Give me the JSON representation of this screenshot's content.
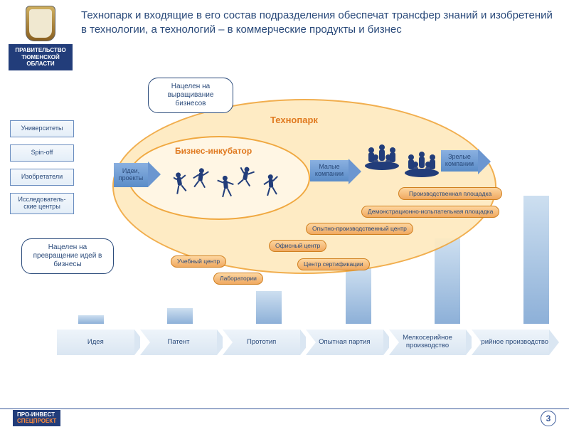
{
  "org_name": "ПРАВИТЕЛЬСТВО ТЮМЕНСКОЙ ОБЛАСТИ",
  "title": "Технопарк и входящие в его состав подразделения обеспечат трансфер знаний и изобретений в технологии, а технологий – в коммерческие продукты и бизнес",
  "sources": [
    "Университеты",
    "Spin-off",
    "Изобретатели",
    "Исследователь-\nские центры"
  ],
  "speech_top": "Нацелен на выращивание бизнесов",
  "speech_left": "Нацелен на превращение идей в бизнесы",
  "technopark_label": "Технопарк",
  "incubator_label": "Бизнес-инкубатор",
  "arrow_labels": {
    "ideas": "Идеи, проекты",
    "small": "Малые компании",
    "mature": "Зрелые компании"
  },
  "facilities": [
    "Производственная площадка",
    "Демонстрационно-испытательная площадка",
    "Опытно-производственный центр",
    "Офисный центр",
    "Учебный центр",
    "Лаборатории",
    "Центр сертификации"
  ],
  "stages": [
    "Идея",
    "Патент",
    "Прототип",
    "Опытная партия",
    "Мелкосерийное производство",
    "Серийное производство"
  ],
  "bars": {
    "heights": [
      12,
      22,
      46,
      80,
      120,
      180
    ],
    "color_start": "#cddff0",
    "color_end": "#8db0d8"
  },
  "colors": {
    "brand": "#223d7a",
    "text": "#2a4a7a",
    "technopark_fill": "#feeac0",
    "technopark_stroke": "#f0a840",
    "incubator_fill": "#fff6e4",
    "incubator_stroke": "#f0a840",
    "pill_start": "#fdd6a0",
    "pill_end": "#f0a860",
    "pill_stroke": "#d08020",
    "arrow_start": "#8ab0e0",
    "arrow_end": "#5a8cc8",
    "source_border": "#6b8ec0",
    "stage_bg_start": "#eef4fa",
    "stage_bg_end": "#dae6f2"
  },
  "footer": {
    "brand_l1": "ПРО-ИНВЕСТ",
    "brand_l2": "СПЕЦПРОЕКТ",
    "page": "3"
  }
}
